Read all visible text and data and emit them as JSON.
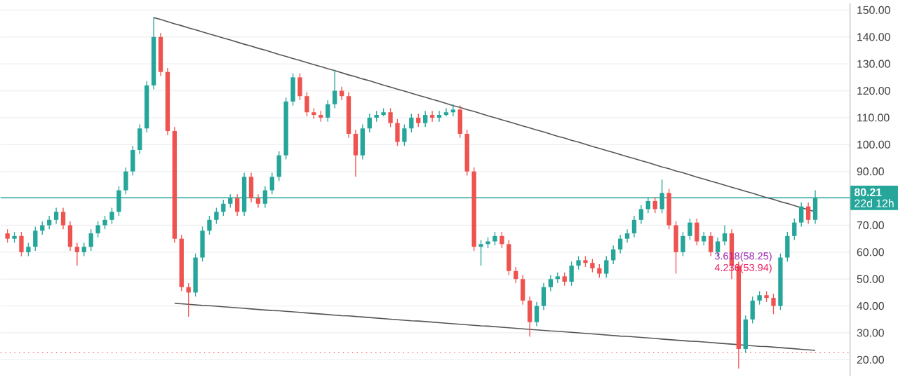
{
  "chart_data": {
    "type": "candlestick",
    "categories": [
      null,
      null,
      null,
      null,
      null,
      null,
      null,
      null,
      null,
      null,
      null,
      null,
      null,
      null,
      null,
      null,
      null,
      null,
      null,
      null,
      null,
      null,
      null,
      null,
      null,
      null,
      null,
      null,
      null,
      null,
      null,
      null,
      null,
      null,
      null,
      null,
      null,
      null,
      null,
      null,
      null,
      null,
      null,
      null,
      null,
      null,
      null,
      null,
      null,
      null,
      null,
      null,
      null,
      null,
      null,
      null,
      null,
      null,
      null,
      null,
      null,
      null,
      null,
      null,
      null,
      null,
      null,
      null,
      null,
      null,
      null,
      null,
      null,
      null,
      null,
      null,
      null,
      null,
      null,
      null,
      null,
      null,
      null,
      null,
      null,
      null,
      null,
      null,
      null,
      null,
      null,
      null,
      null,
      null,
      null,
      null,
      null,
      null,
      null,
      null,
      null,
      null,
      null,
      null,
      null,
      null,
      null,
      null,
      null,
      null,
      null,
      null,
      null,
      null,
      null,
      null,
      null
    ],
    "ohlc": [
      [
        67,
        68.5,
        63.5,
        65
      ],
      [
        65,
        67.5,
        63.5,
        66
      ],
      [
        66,
        67.5,
        58.5,
        60
      ],
      [
        60,
        63.5,
        58.5,
        62
      ],
      [
        62,
        69.5,
        60.5,
        68
      ],
      [
        68,
        71.5,
        66.5,
        70
      ],
      [
        70,
        73.5,
        68.5,
        72
      ],
      [
        72,
        76.5,
        70.5,
        75
      ],
      [
        75,
        76.5,
        68.5,
        70
      ],
      [
        70,
        71.5,
        60.5,
        62
      ],
      [
        62,
        63.5,
        55,
        60
      ],
      [
        60,
        63.5,
        58.5,
        62
      ],
      [
        62,
        68.5,
        60.5,
        67
      ],
      [
        67,
        71.5,
        65.5,
        70
      ],
      [
        70,
        73.5,
        68.5,
        72
      ],
      [
        72,
        76.5,
        70.5,
        75
      ],
      [
        75,
        84.5,
        73.5,
        83
      ],
      [
        83,
        91.5,
        81.5,
        90
      ],
      [
        90,
        99.5,
        88.5,
        98
      ],
      [
        98,
        107.5,
        96.5,
        106
      ],
      [
        106,
        123.5,
        104.5,
        122
      ],
      [
        122,
        147.4,
        120.5,
        140
      ],
      [
        140,
        141.5,
        125.5,
        127
      ],
      [
        127,
        128.5,
        103.5,
        105
      ],
      [
        105,
        106.5,
        63.5,
        65
      ],
      [
        65,
        66.5,
        45.5,
        47
      ],
      [
        47,
        48.5,
        36,
        45
      ],
      [
        45,
        59.5,
        43.5,
        58
      ],
      [
        58,
        69.5,
        56.5,
        68
      ],
      [
        68,
        73.5,
        66.5,
        72
      ],
      [
        72,
        76.5,
        70.5,
        75
      ],
      [
        75,
        79.5,
        73.5,
        78
      ],
      [
        78,
        81.5,
        76.5,
        80
      ],
      [
        80,
        81.5,
        73.5,
        75
      ],
      [
        75,
        89.5,
        73.5,
        88
      ],
      [
        88,
        89.5,
        78.5,
        80
      ],
      [
        80,
        81.5,
        76.5,
        78
      ],
      [
        78,
        84.5,
        76.5,
        83
      ],
      [
        83,
        89.5,
        81.5,
        88
      ],
      [
        88,
        97.5,
        86.5,
        96
      ],
      [
        96,
        117.5,
        94.5,
        116
      ],
      [
        116,
        126.5,
        114.5,
        125
      ],
      [
        125,
        126.5,
        116.5,
        118
      ],
      [
        118,
        119.5,
        110.5,
        112
      ],
      [
        112,
        113.5,
        109.5,
        111
      ],
      [
        111,
        112.5,
        108.5,
        110
      ],
      [
        110,
        116.5,
        108.5,
        115
      ],
      [
        115,
        127.8,
        113.5,
        120
      ],
      [
        120,
        121.5,
        116.5,
        118
      ],
      [
        118,
        119.5,
        102.5,
        104
      ],
      [
        104,
        105.5,
        88,
        96
      ],
      [
        96,
        107.5,
        94.5,
        106
      ],
      [
        106,
        111.5,
        104.5,
        110
      ],
      [
        110,
        112.5,
        108.5,
        111
      ],
      [
        111,
        113.5,
        110.5,
        112
      ],
      [
        112,
        113.5,
        106.5,
        108
      ],
      [
        108,
        109.5,
        99.5,
        101
      ],
      [
        101,
        107.5,
        99.5,
        106
      ],
      [
        106,
        111.5,
        104.5,
        110
      ],
      [
        110,
        111.5,
        106.5,
        108
      ],
      [
        108,
        112.5,
        106.5,
        111
      ],
      [
        111,
        112.5,
        108.5,
        110
      ],
      [
        110,
        112.5,
        108.5,
        111
      ],
      [
        111,
        113.5,
        110.5,
        112
      ],
      [
        112,
        115,
        110.5,
        113
      ],
      [
        113,
        114.5,
        102.5,
        104
      ],
      [
        104,
        105.5,
        88.5,
        90
      ],
      [
        90,
        91.5,
        60.5,
        62
      ],
      [
        62,
        64.5,
        55,
        63
      ],
      [
        63,
        65.5,
        61.5,
        64
      ],
      [
        64,
        67.5,
        62.5,
        66
      ],
      [
        66,
        67.5,
        61.5,
        63
      ],
      [
        63,
        64.5,
        51.5,
        53
      ],
      [
        53,
        54.5,
        48.5,
        50
      ],
      [
        50,
        51.5,
        40.5,
        42
      ],
      [
        42,
        43.5,
        28.6,
        34
      ],
      [
        34,
        41.5,
        32.5,
        40
      ],
      [
        40,
        48.5,
        38.5,
        47
      ],
      [
        47,
        51.5,
        45.5,
        50
      ],
      [
        50,
        52.5,
        48.5,
        51
      ],
      [
        51,
        52.5,
        47.5,
        49
      ],
      [
        49,
        56.5,
        47.5,
        55
      ],
      [
        55,
        58.5,
        53.5,
        57
      ],
      [
        57,
        58.5,
        54.5,
        56
      ],
      [
        56,
        57.5,
        52.5,
        54
      ],
      [
        54,
        55.5,
        50.5,
        52
      ],
      [
        52,
        58.5,
        50.5,
        57
      ],
      [
        57,
        62.5,
        55.5,
        61
      ],
      [
        61,
        66.5,
        59.5,
        65
      ],
      [
        65,
        68.5,
        63.5,
        67
      ],
      [
        67,
        73.5,
        65.5,
        72
      ],
      [
        72,
        77.5,
        70.5,
        76
      ],
      [
        76,
        80.5,
        74.5,
        79
      ],
      [
        79,
        80.5,
        74.5,
        76
      ],
      [
        76,
        87,
        74.5,
        82
      ],
      [
        82,
        83.5,
        68.5,
        70
      ],
      [
        70,
        71.5,
        52,
        60
      ],
      [
        60,
        67.5,
        58.5,
        66
      ],
      [
        66,
        72.5,
        64.5,
        71
      ],
      [
        71,
        72.5,
        62.5,
        64
      ],
      [
        64,
        67.5,
        62.5,
        66
      ],
      [
        66,
        67.5,
        58.5,
        60
      ],
      [
        60,
        65.5,
        58.5,
        64
      ],
      [
        64,
        70,
        62.5,
        67
      ],
      [
        67,
        68.5,
        50,
        55
      ],
      [
        55,
        56.5,
        16.7,
        24
      ],
      [
        24,
        36.5,
        22.5,
        35
      ],
      [
        35,
        43.5,
        33.5,
        42
      ],
      [
        42,
        45.5,
        40.5,
        44
      ],
      [
        44,
        45.5,
        41.5,
        43
      ],
      [
        43,
        44.5,
        37,
        40
      ],
      [
        40,
        59.5,
        38.5,
        58
      ],
      [
        58,
        67.5,
        56.5,
        66
      ],
      [
        66,
        72.5,
        64.5,
        71
      ],
      [
        71,
        78.5,
        69.5,
        77
      ],
      [
        77,
        78.5,
        70.5,
        72
      ],
      [
        72,
        83,
        70.5,
        80.21
      ]
    ],
    "series": [
      {
        "type": "line",
        "color": "#555555",
        "values": [
          null,
          null,
          null,
          null,
          null,
          null,
          null,
          null,
          null,
          null,
          null,
          null,
          null,
          null,
          null,
          null,
          null,
          null,
          null,
          null,
          null,
          147.2,
          146.5,
          145.7,
          144.9,
          144.2,
          143.4,
          142.7,
          141.9,
          141.1,
          140.4,
          139.6,
          138.9,
          138.1,
          137.3,
          136.6,
          135.8,
          135.1,
          134.3,
          133.5,
          132.8,
          132.0,
          131.3,
          130.5,
          129.7,
          129.0,
          128.2,
          127.5,
          126.7,
          125.9,
          125.2,
          124.4,
          123.7,
          122.9,
          122.1,
          121.4,
          120.6,
          119.9,
          119.1,
          118.3,
          117.6,
          116.8,
          116.1,
          115.3,
          114.5,
          113.8,
          113.0,
          112.3,
          111.5,
          110.7,
          110.0,
          109.2,
          108.5,
          107.7,
          106.9,
          106.2,
          105.4,
          104.7,
          103.9,
          103.1,
          102.4,
          101.6,
          100.9,
          100.1,
          99.3,
          98.6,
          97.8,
          97.1,
          96.3,
          95.5,
          94.8,
          94.0,
          93.3,
          92.5,
          91.7,
          91.0,
          90.2,
          89.5,
          88.7,
          87.9,
          87.2,
          86.4,
          85.7,
          84.9,
          84.1,
          83.4,
          82.6,
          81.9,
          81.1,
          80.3,
          79.6,
          78.8,
          78.1,
          77.3,
          76.5,
          75.8,
          75.0
        ]
      },
      {
        "type": "line",
        "color": "#555555",
        "values": [
          null,
          null,
          null,
          null,
          null,
          null,
          null,
          null,
          null,
          null,
          null,
          null,
          null,
          null,
          null,
          null,
          null,
          null,
          null,
          null,
          null,
          null,
          null,
          null,
          41.0,
          40.8,
          40.6,
          40.4,
          40.2,
          40.1,
          39.9,
          39.7,
          39.5,
          39.3,
          39.1,
          38.9,
          38.7,
          38.5,
          38.3,
          38.2,
          38.0,
          37.8,
          37.6,
          37.4,
          37.2,
          37.0,
          36.8,
          36.6,
          36.4,
          36.3,
          36.1,
          35.9,
          35.7,
          35.5,
          35.3,
          35.1,
          34.9,
          34.7,
          34.5,
          34.4,
          34.2,
          34.0,
          33.8,
          33.6,
          33.4,
          33.2,
          33.0,
          32.8,
          32.6,
          32.5,
          32.3,
          32.1,
          31.9,
          31.7,
          31.5,
          31.3,
          31.1,
          30.9,
          30.7,
          30.6,
          30.4,
          30.2,
          30.0,
          29.8,
          29.6,
          29.4,
          29.2,
          29.0,
          28.8,
          28.7,
          28.5,
          28.3,
          28.1,
          27.9,
          27.7,
          27.5,
          27.3,
          27.1,
          26.9,
          26.8,
          26.6,
          26.4,
          26.2,
          26.0,
          25.8,
          25.6,
          25.4,
          25.2,
          25.0,
          24.9,
          24.7,
          24.5,
          24.3,
          24.1,
          23.9,
          23.7,
          23.5
        ]
      }
    ],
    "ylim": [
      14,
      152.6
    ],
    "yticks": [
      {
        "value": 20,
        "label": "20.00"
      },
      {
        "value": 30,
        "label": "30.00"
      },
      {
        "value": 40,
        "label": "40.00"
      },
      {
        "value": 50,
        "label": "50.00"
      },
      {
        "value": 60,
        "label": "60.00"
      },
      {
        "value": 70,
        "label": "70.00"
      },
      {
        "value": 90,
        "label": "90.00"
      },
      {
        "value": 100,
        "label": "100.00"
      },
      {
        "value": 110,
        "label": "110.00"
      },
      {
        "value": 120,
        "label": "120.00"
      },
      {
        "value": 130,
        "label": "130.00"
      },
      {
        "value": 140,
        "label": "140.00"
      },
      {
        "value": 150,
        "label": "150.00"
      }
    ],
    "tick_labels": "y",
    "grid": "y",
    "ref_lines": [
      {
        "axis": "y",
        "value": 80.21,
        "label": "80.21",
        "color": "#26a69a"
      },
      {
        "axis": "y",
        "value": 22.6,
        "color": "#ef5350",
        "line_style": "dotted"
      }
    ],
    "annotations": [
      "22d 12h",
      {
        "text": "3.618(58.25)",
        "y": 58.25
      },
      {
        "text": "4.236(53.94)",
        "y": 53.94
      }
    ]
  }
}
